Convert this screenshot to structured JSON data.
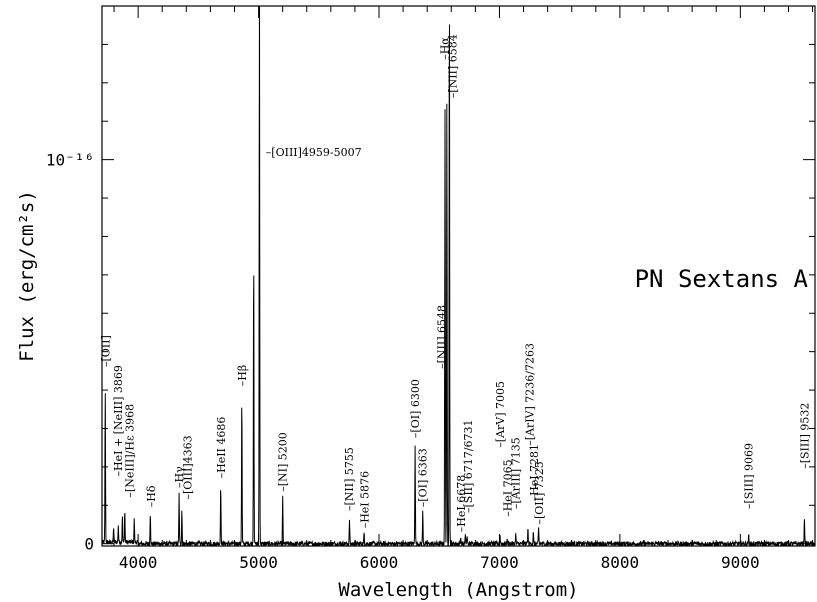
{
  "chart_data": {
    "type": "line",
    "xlabel": "Wavelength (Angstrom)",
    "ylabel": "Flux (erg/cm²s)",
    "annotation": "PN Sextans A",
    "xlim": [
      3700,
      9620
    ],
    "ylim": [
      -6e-19,
      1.4e-16
    ],
    "x_ticks": [
      {
        "value": 4000,
        "label": "4000"
      },
      {
        "value": 5000,
        "label": "5000"
      },
      {
        "value": 6000,
        "label": "6000"
      },
      {
        "value": 7000,
        "label": "7000"
      },
      {
        "value": 8000,
        "label": "8000"
      },
      {
        "value": 9000,
        "label": "9000"
      }
    ],
    "y_ticks": [
      {
        "value": 0,
        "label": "0"
      },
      {
        "value": 1e-16,
        "label": "10⁻¹⁶"
      }
    ],
    "grid": false,
    "legend": "none",
    "series": [
      {
        "lines": [
          {
            "x": 3727,
            "y": 4e-17
          },
          {
            "x": 3797,
            "y": 4e-18
          },
          {
            "x": 3835,
            "y": 4.5e-18
          },
          {
            "x": 3869,
            "y": 7e-18
          },
          {
            "x": 3889,
            "y": 8.5e-18
          },
          {
            "x": 3968,
            "y": 6e-18
          },
          {
            "x": 4101,
            "y": 8.5e-18
          },
          {
            "x": 4340,
            "y": 1.3e-17
          },
          {
            "x": 4363,
            "y": 9e-18
          },
          {
            "x": 4686,
            "y": 1.6e-17
          },
          {
            "x": 4861,
            "y": 3.9e-17
          },
          {
            "x": 4959,
            "y": 7.8e-17
          },
          {
            "x": 5007,
            "y": 1.5e-16
          },
          {
            "x": 5200,
            "y": 1.2e-17
          },
          {
            "x": 5755,
            "y": 6.5e-18
          },
          {
            "x": 5876,
            "y": 3e-18
          },
          {
            "x": 6300,
            "y": 2.6e-17
          },
          {
            "x": 6363,
            "y": 8.5e-18
          },
          {
            "x": 6548,
            "y": 1.16e-16
          },
          {
            "x": 6563,
            "y": 1.17e-16
          },
          {
            "x": 6584,
            "y": 1.5e-16
          },
          {
            "x": 6678,
            "y": 2e-18
          },
          {
            "x": 6717,
            "y": 2e-18
          },
          {
            "x": 6731,
            "y": 2e-18
          },
          {
            "x": 7005,
            "y": 2e-18
          },
          {
            "x": 7065,
            "y": 1.5e-18
          },
          {
            "x": 7135,
            "y": 2.5e-18
          },
          {
            "x": 7236,
            "y": 4e-18
          },
          {
            "x": 7281,
            "y": 3e-18
          },
          {
            "x": 7325,
            "y": 4e-18
          },
          {
            "x": 9069,
            "y": 2e-18
          },
          {
            "x": 9532,
            "y": 7e-18
          }
        ]
      }
    ],
    "line_labels": [
      {
        "text": "[OII]",
        "x": 3727,
        "y": 4.6e-17,
        "rot": true
      },
      {
        "text": "HeI + [NeIII] 3869",
        "x": 3833,
        "y": 1.75e-17,
        "rot": true
      },
      {
        "text": "[NeIII]/Hε 3968",
        "x": 3930,
        "y": 1.2e-17,
        "rot": true
      },
      {
        "text": "Hδ",
        "x": 4105,
        "y": 9.5e-18,
        "rot": true
      },
      {
        "text": "Hγ",
        "x": 4340,
        "y": 1.45e-17,
        "rot": true
      },
      {
        "text": "[OIII]4363",
        "x": 4410,
        "y": 1.15e-17,
        "rot": true
      },
      {
        "text": "HeII 4686",
        "x": 4690,
        "y": 1.7e-17,
        "rot": true
      },
      {
        "text": "Hβ",
        "x": 4861,
        "y": 4.1e-17,
        "rot": true
      },
      {
        "text": "[OIII]4959-5007",
        "x": 5060,
        "y": 1.02e-16,
        "rot": false
      },
      {
        "text": "[NI] 5200",
        "x": 5200,
        "y": 1.35e-17,
        "rot": true
      },
      {
        "text": "[NII] 5755",
        "x": 5750,
        "y": 8.5e-18,
        "rot": true
      },
      {
        "text": "HeI 5876",
        "x": 5880,
        "y": 4e-18,
        "rot": true
      },
      {
        "text": "[OI] 6300",
        "x": 6300,
        "y": 2.75e-17,
        "rot": true
      },
      {
        "text": "[OI] 6363",
        "x": 6363,
        "y": 9.5e-18,
        "rot": true
      },
      {
        "text": "[NII] 6548",
        "x": 6520,
        "y": 4.55e-17,
        "rot": true
      },
      {
        "text": "Hα",
        "x": 6545,
        "y": 1.26e-16,
        "rot": true
      },
      {
        "text": "[NII] 6584",
        "x": 6612,
        "y": 1.16e-16,
        "rot": true
      },
      {
        "text": "HeI 6678",
        "x": 6680,
        "y": 3e-18,
        "rot": true
      },
      {
        "text": "[SII] 6717/6731",
        "x": 6740,
        "y": 8e-18,
        "rot": true
      },
      {
        "text": "[ArV] 7005",
        "x": 7005,
        "y": 2.5e-17,
        "rot": true
      },
      {
        "text": "HeI 7065",
        "x": 7065,
        "y": 7e-18,
        "rot": true
      },
      {
        "text": "[ArIII] 7135",
        "x": 7135,
        "y": 9e-18,
        "rot": true
      },
      {
        "text": "[ArIV] 7236/7263",
        "x": 7250,
        "y": 2.55e-17,
        "rot": true
      },
      {
        "text": "HeI 7281",
        "x": 7285,
        "y": 1.1e-17,
        "rot": true
      },
      {
        "text": "[OII] 7325",
        "x": 7330,
        "y": 5e-18,
        "rot": true
      },
      {
        "text": "[SIII] 9069",
        "x": 9069,
        "y": 9e-18,
        "rot": true
      },
      {
        "text": "[SIII] 9532",
        "x": 9532,
        "y": 1.95e-17,
        "rot": true
      }
    ]
  }
}
